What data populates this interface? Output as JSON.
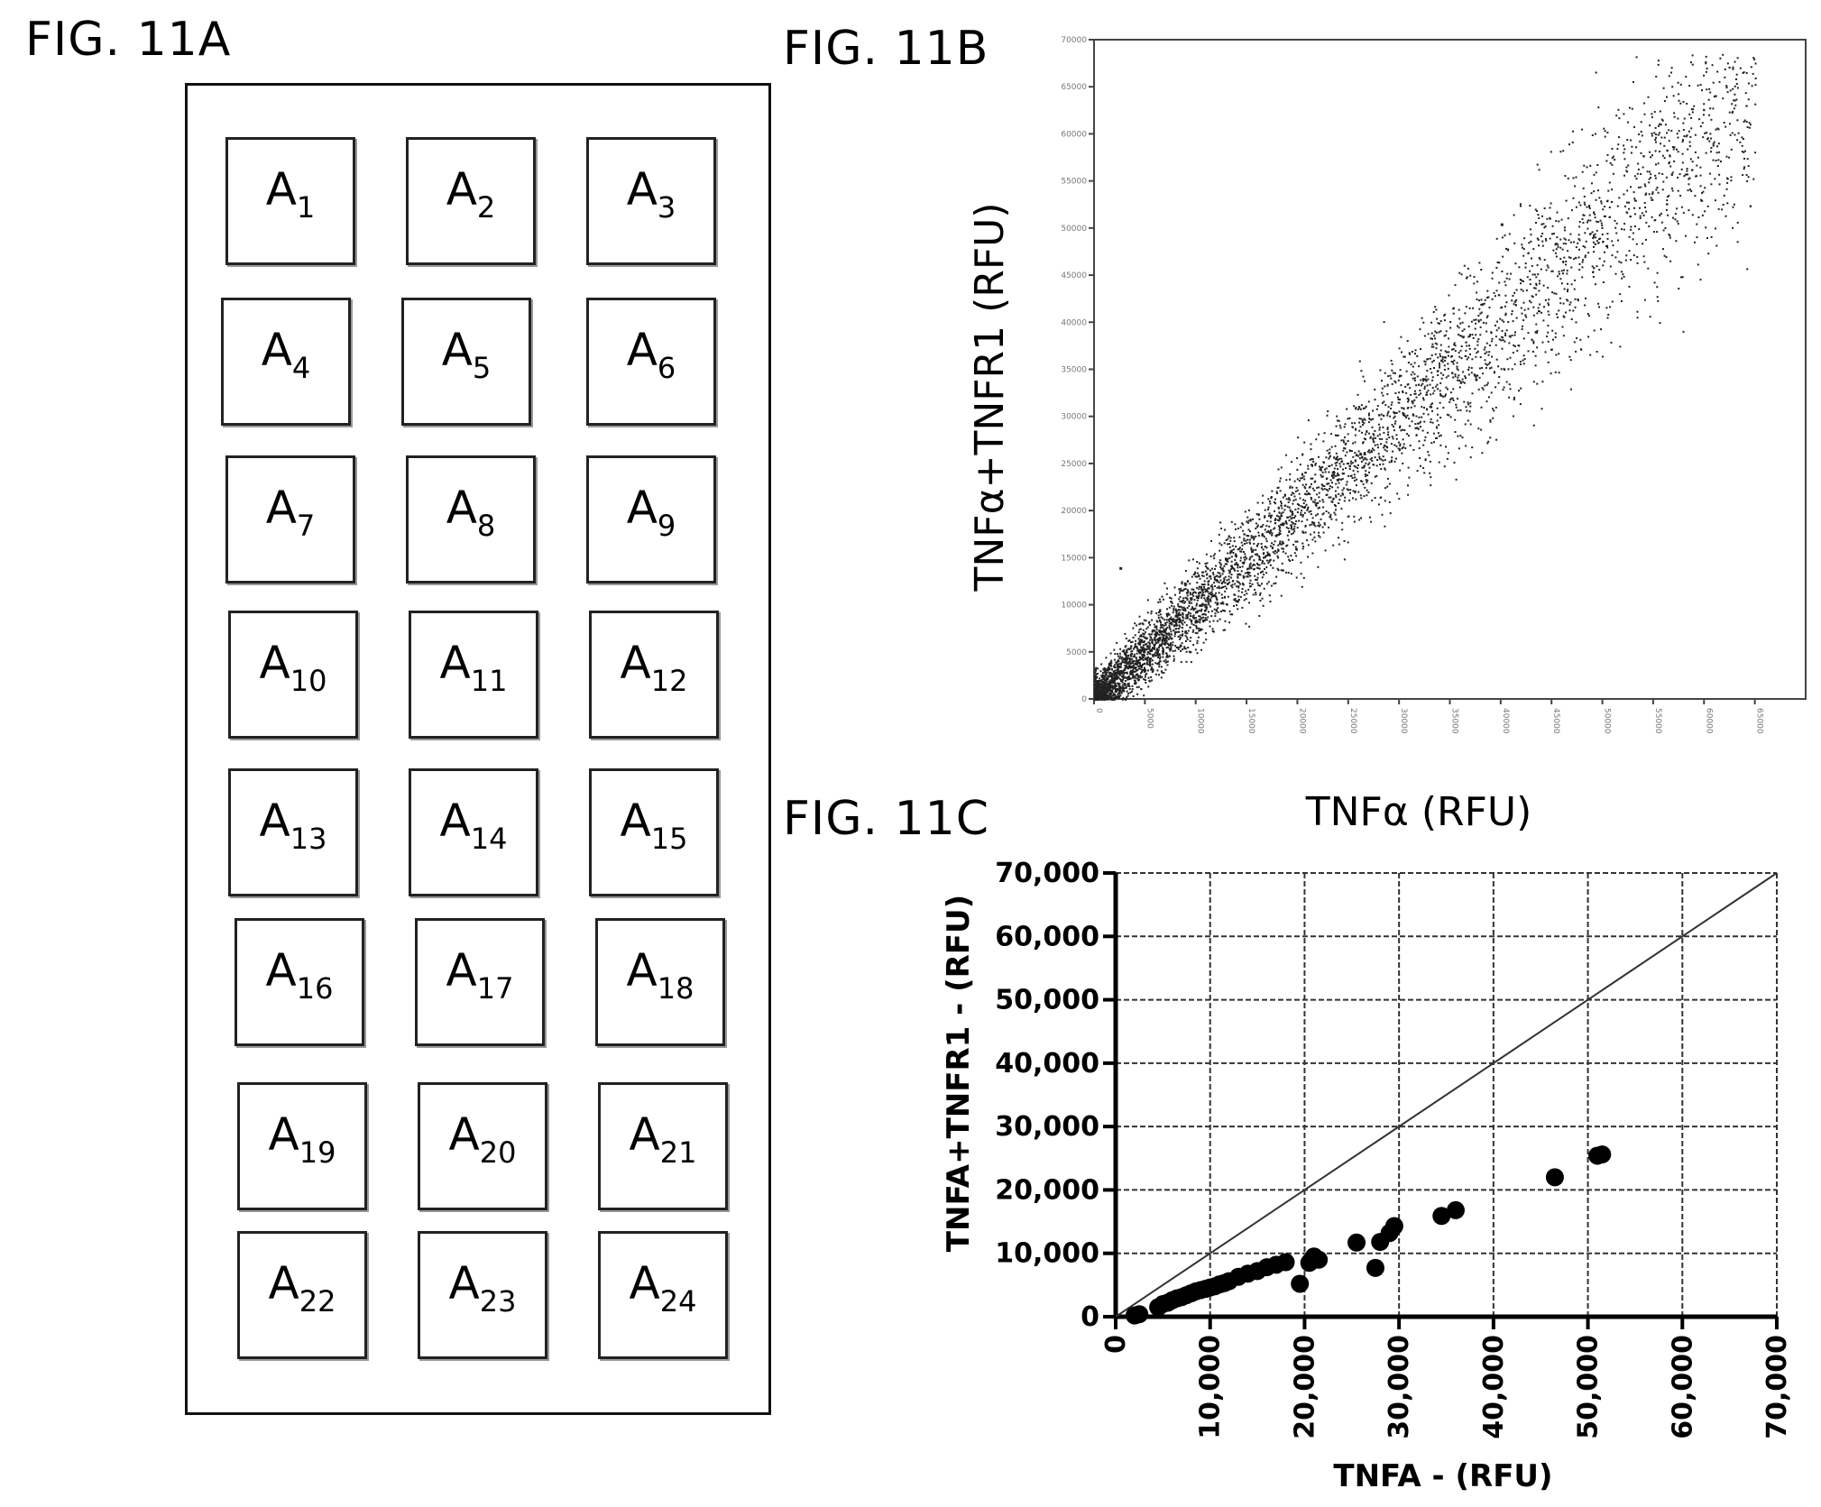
{
  "fig_a": {
    "label": "FIG. 11A",
    "wells": [
      {
        "base": "A",
        "sub": "1"
      },
      {
        "base": "A",
        "sub": "2"
      },
      {
        "base": "A",
        "sub": "3"
      },
      {
        "base": "A",
        "sub": "4"
      },
      {
        "base": "A",
        "sub": "5"
      },
      {
        "base": "A",
        "sub": "6"
      },
      {
        "base": "A",
        "sub": "7"
      },
      {
        "base": "A",
        "sub": "8"
      },
      {
        "base": "A",
        "sub": "9"
      },
      {
        "base": "A",
        "sub": "10"
      },
      {
        "base": "A",
        "sub": "11"
      },
      {
        "base": "A",
        "sub": "12"
      },
      {
        "base": "A",
        "sub": "13"
      },
      {
        "base": "A",
        "sub": "14"
      },
      {
        "base": "A",
        "sub": "15"
      },
      {
        "base": "A",
        "sub": "16"
      },
      {
        "base": "A",
        "sub": "17"
      },
      {
        "base": "A",
        "sub": "18"
      },
      {
        "base": "A",
        "sub": "19"
      },
      {
        "base": "A",
        "sub": "20"
      },
      {
        "base": "A",
        "sub": "21"
      },
      {
        "base": "A",
        "sub": "22"
      },
      {
        "base": "A",
        "sub": "23"
      },
      {
        "base": "A",
        "sub": "24"
      }
    ]
  },
  "fig_b": {
    "label": "FIG. 11B"
  },
  "fig_c": {
    "label": "FIG. 11C"
  },
  "chart_data": [
    {
      "type": "scatter",
      "xlabel": "TNFα (RFU)",
      "ylabel": "TNFα+TNFR1 (RFU)",
      "xlim": [
        0,
        70000
      ],
      "ylim": [
        0,
        70000
      ],
      "x_ticks": [
        0,
        5000,
        10000,
        15000,
        20000,
        25000,
        30000,
        35000,
        40000,
        45000,
        50000,
        55000,
        60000,
        65000
      ],
      "y_ticks": [
        0,
        5000,
        10000,
        15000,
        20000,
        25000,
        30000,
        35000,
        40000,
        45000,
        50000,
        55000,
        60000,
        65000,
        70000
      ],
      "trend": {
        "x_end": 65000,
        "y_end": 65000
      },
      "grid": false,
      "point_color": "#222222"
    },
    {
      "type": "scatter",
      "xlabel": "TNFA - (RFU)",
      "ylabel": "TNFA+TNFR1 - (RFU)",
      "xlim": [
        0,
        70000
      ],
      "ylim": [
        0,
        70000
      ],
      "x_tick_labels": [
        "0",
        "10,000",
        "20,000",
        "30,000",
        "40,000",
        "50,000",
        "60,000",
        "70,000"
      ],
      "y_tick_labels": [
        "0",
        "10,000",
        "20,000",
        "30,000",
        "40,000",
        "50,000",
        "60,000",
        "70,000"
      ],
      "ticks": [
        0,
        10000,
        20000,
        30000,
        40000,
        50000,
        60000,
        70000
      ],
      "grid": true,
      "identity_line": true,
      "x": [
        2000,
        2500,
        4500,
        5000,
        5500,
        6000,
        6500,
        7000,
        7500,
        8000,
        8500,
        9000,
        9500,
        10000,
        10500,
        11000,
        11500,
        12000,
        13000,
        14000,
        15000,
        16000,
        17000,
        18000,
        19500,
        20500,
        21000,
        21500,
        25500,
        27500,
        28000,
        29000,
        29500,
        34500,
        36000,
        46500,
        51000,
        51500
      ],
      "y": [
        200,
        400,
        1500,
        2000,
        2200,
        2600,
        2900,
        3100,
        3400,
        3700,
        4000,
        4200,
        4400,
        4600,
        4800,
        5100,
        5300,
        5600,
        6300,
        6800,
        7200,
        7800,
        8200,
        8600,
        5200,
        8500,
        9500,
        9000,
        11700,
        7700,
        11800,
        13200,
        14300,
        15900,
        16800,
        22000,
        25400,
        25600
      ]
    }
  ]
}
